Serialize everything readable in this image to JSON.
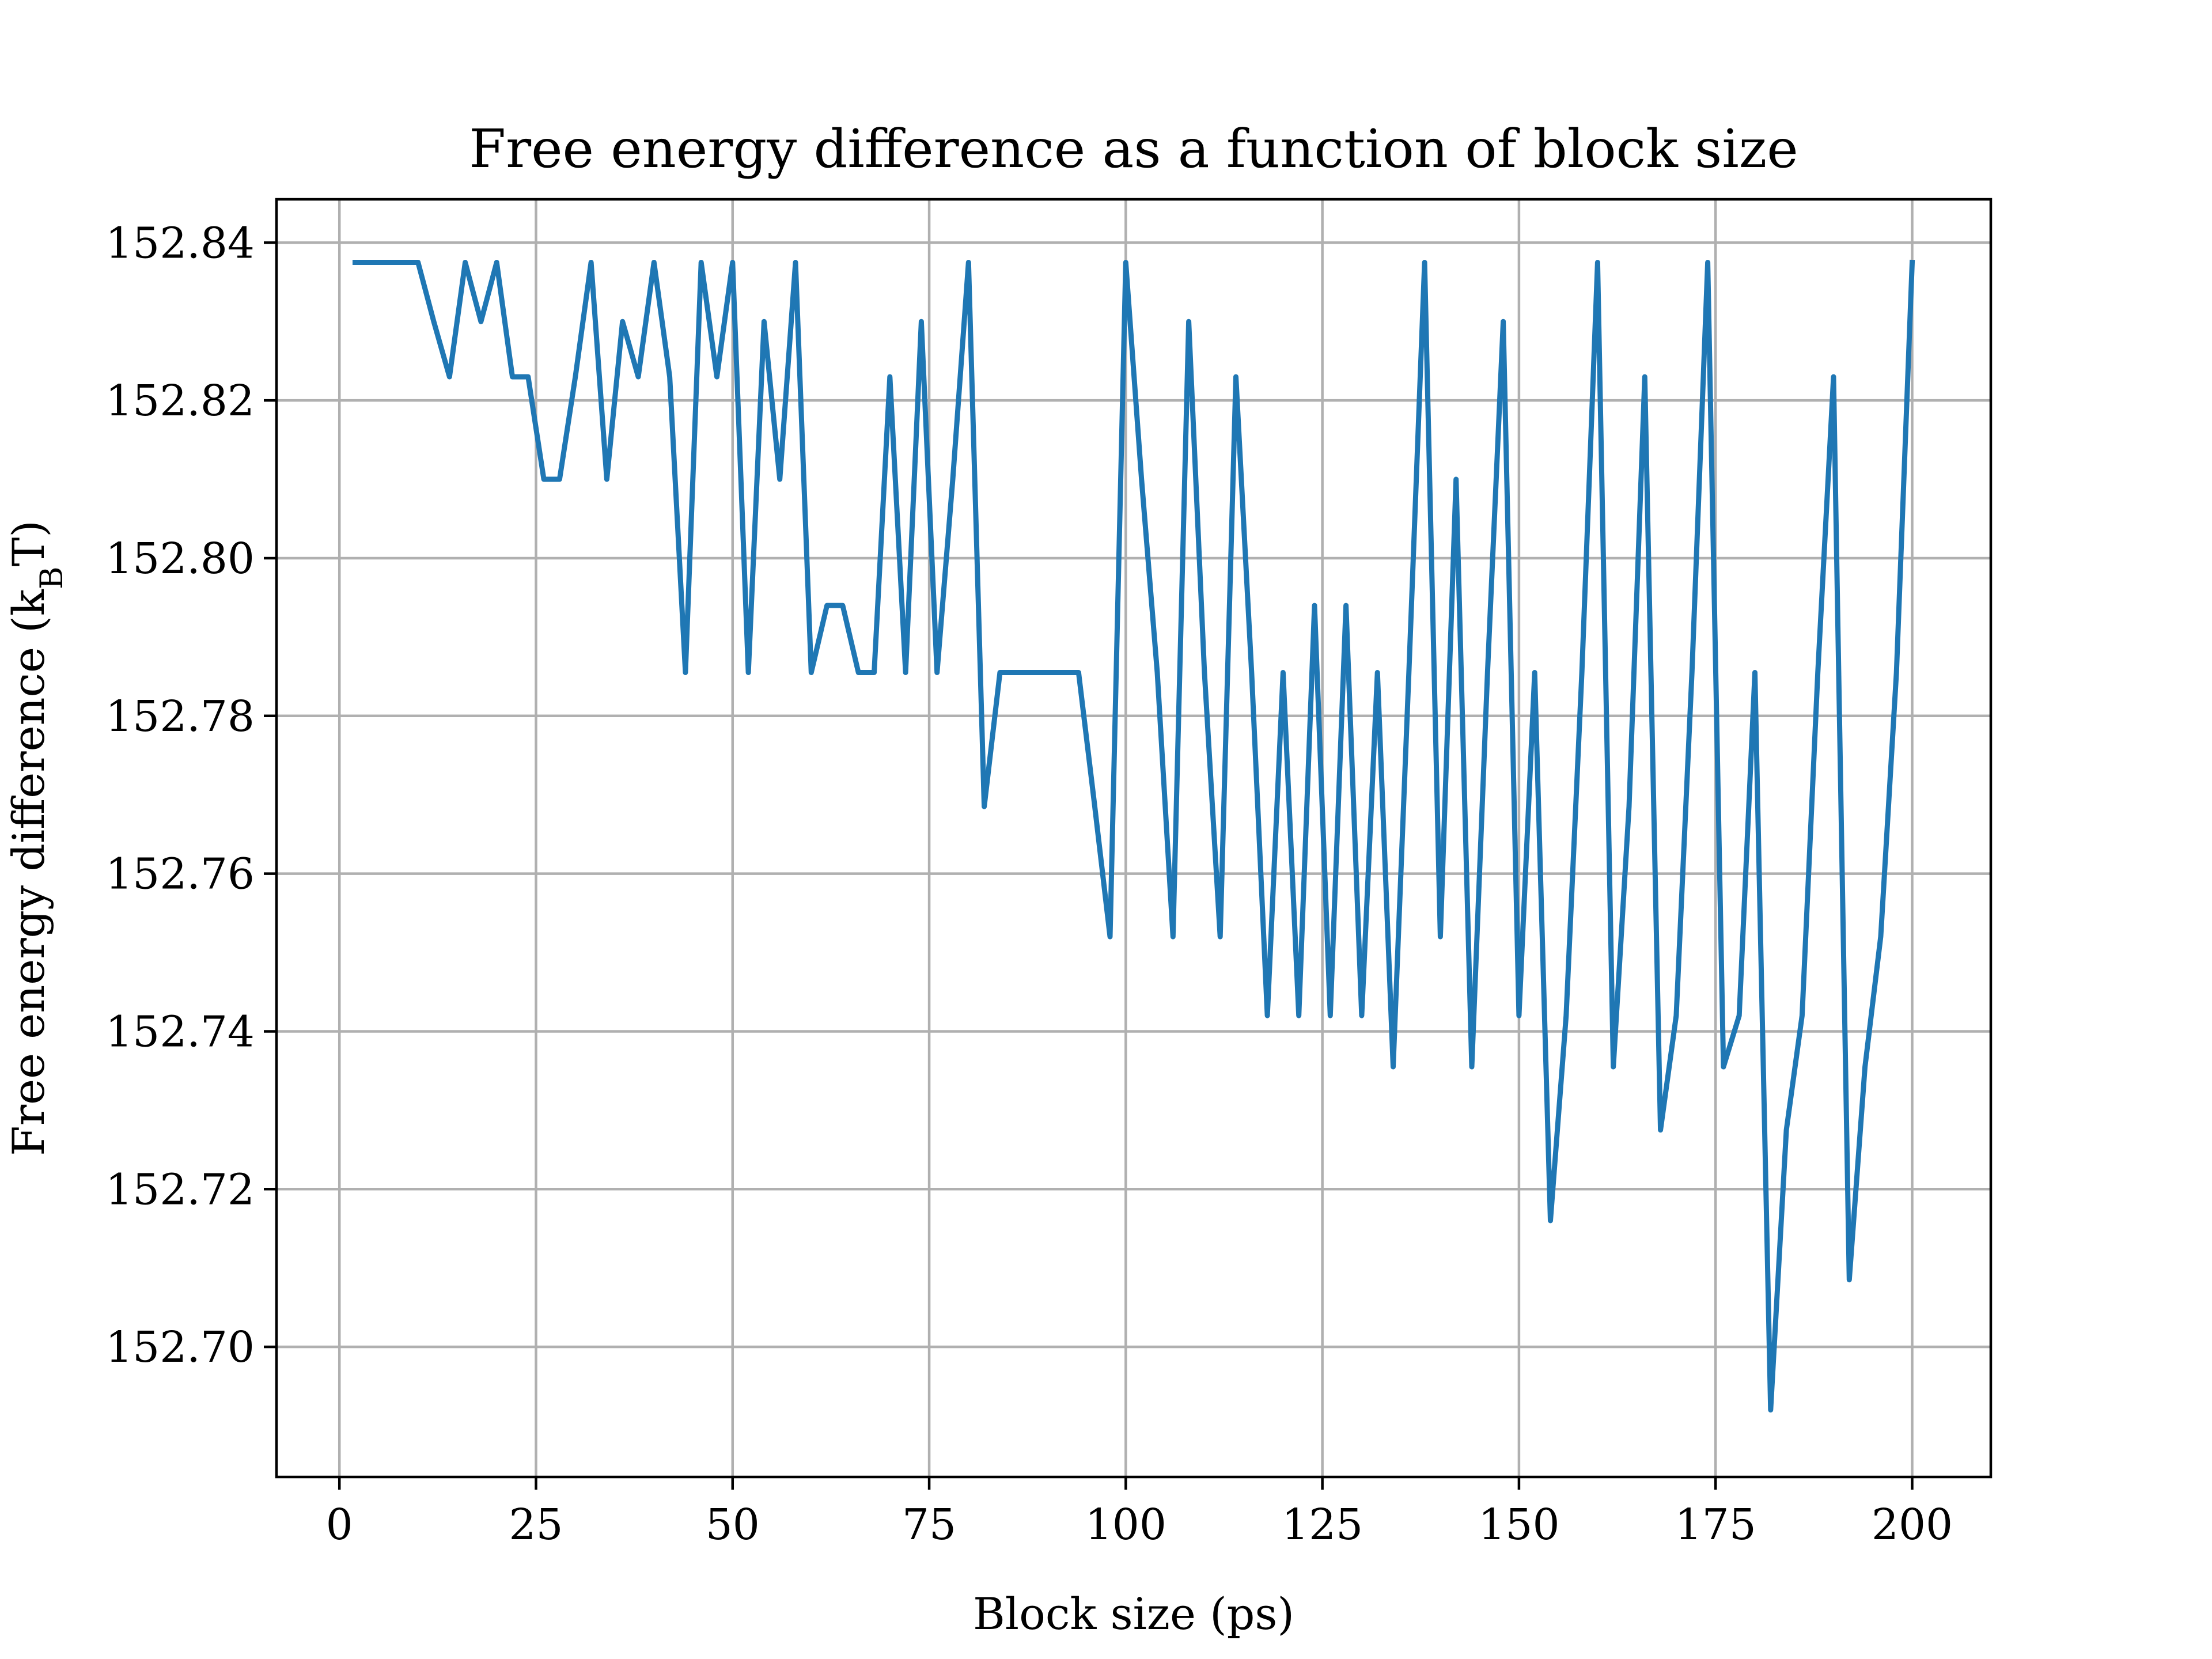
{
  "chart_data": {
    "type": "line",
    "title": "Free energy difference as a function of block size",
    "xlabel": "Block size (ps)",
    "ylabel_main": "Free energy difference (k",
    "ylabel_sub": "B",
    "ylabel_tail": "T)",
    "xlim": [
      -8,
      210
    ],
    "ylim": [
      152.6835,
      152.8455
    ],
    "xticks": [
      0,
      25,
      50,
      75,
      100,
      125,
      150,
      175,
      200
    ],
    "xtick_labels": [
      "0",
      "25",
      "50",
      "75",
      "100",
      "125",
      "150",
      "175",
      "200"
    ],
    "yticks": [
      152.7,
      152.72,
      152.74,
      152.76,
      152.78,
      152.8,
      152.82,
      152.84
    ],
    "ytick_labels": [
      "152.70",
      "152.72",
      "152.74",
      "152.76",
      "152.78",
      "152.80",
      "152.82",
      "152.84"
    ],
    "grid": true,
    "series": [
      {
        "color": "#1f77b4",
        "x": [
          2,
          4,
          6,
          8,
          10,
          12,
          14,
          16,
          18,
          20,
          22,
          24,
          26,
          28,
          30,
          32,
          34,
          36,
          38,
          40,
          42,
          44,
          46,
          48,
          50,
          52,
          54,
          56,
          58,
          60,
          62,
          64,
          66,
          68,
          70,
          72,
          74,
          76,
          78,
          80,
          82,
          84,
          86,
          88,
          90,
          92,
          94,
          96,
          98,
          100,
          102,
          104,
          106,
          108,
          110,
          112,
          114,
          116,
          118,
          120,
          122,
          124,
          126,
          128,
          130,
          132,
          134,
          136,
          138,
          140,
          142,
          144,
          146,
          148,
          150,
          152,
          154,
          156,
          158,
          160,
          162,
          164,
          166,
          168,
          170,
          172,
          174,
          176,
          178,
          180,
          182,
          184,
          186,
          188,
          190,
          192,
          194,
          196,
          198,
          200
        ],
        "y": [
          152.8375,
          152.8375,
          152.8375,
          152.8375,
          152.8375,
          152.83,
          152.823,
          152.8375,
          152.83,
          152.8375,
          152.823,
          152.823,
          152.81,
          152.81,
          152.823,
          152.8375,
          152.81,
          152.83,
          152.823,
          152.8375,
          152.823,
          152.7855,
          152.8375,
          152.823,
          152.8375,
          152.7855,
          152.83,
          152.81,
          152.8375,
          152.7855,
          152.794,
          152.794,
          152.7855,
          152.7855,
          152.823,
          152.7855,
          152.83,
          152.7855,
          152.81,
          152.8375,
          152.7685,
          152.7855,
          152.7855,
          152.7855,
          152.7855,
          152.7855,
          152.7855,
          152.769,
          152.752,
          152.8375,
          152.81,
          152.7855,
          152.752,
          152.83,
          152.7855,
          152.752,
          152.823,
          152.7855,
          152.742,
          152.7855,
          152.742,
          152.794,
          152.742,
          152.794,
          152.742,
          152.7855,
          152.7355,
          152.7855,
          152.8375,
          152.752,
          152.81,
          152.7355,
          152.7855,
          152.83,
          152.742,
          152.7855,
          152.716,
          152.742,
          152.7855,
          152.8375,
          152.7355,
          152.7685,
          152.823,
          152.7275,
          152.742,
          152.7855,
          152.8375,
          152.7355,
          152.742,
          152.7855,
          152.692,
          152.7275,
          152.742,
          152.7855,
          152.823,
          152.7085,
          152.7355,
          152.752,
          152.7855,
          152.8375
        ]
      }
    ]
  }
}
